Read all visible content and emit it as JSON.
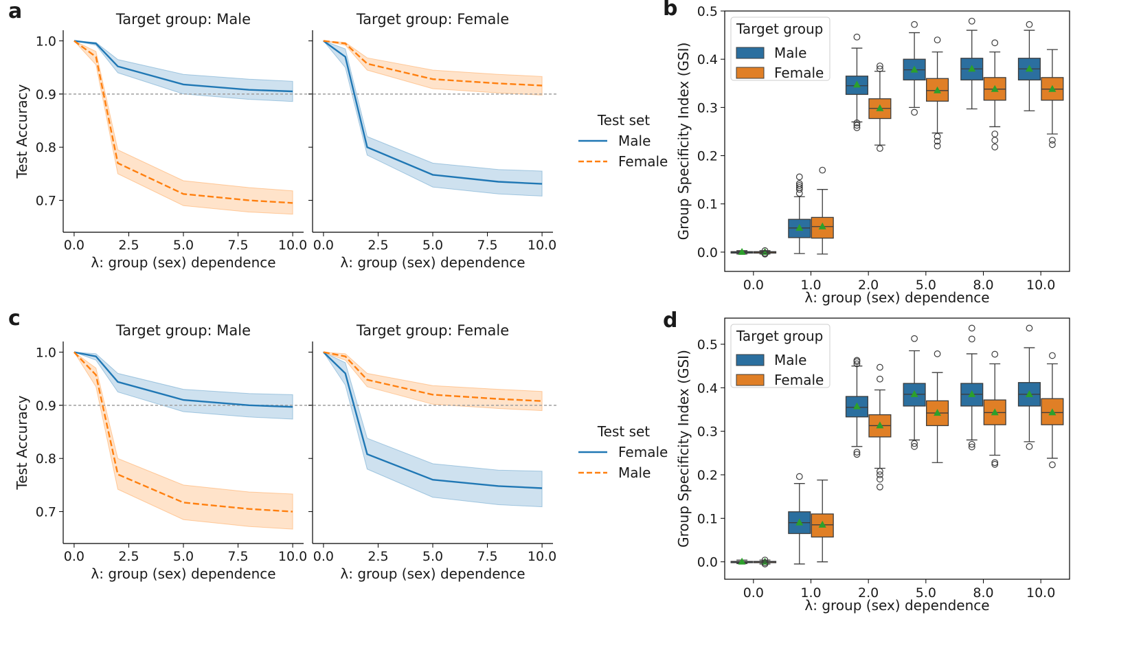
{
  "colors": {
    "blue": "#1f77b4",
    "orange": "#ff7f0e",
    "box_blue": "#2b6f9f",
    "box_orange": "#e07f26",
    "mean_marker": "#2ca02c",
    "reference_line": "#9e9e9e"
  },
  "chart_data": [
    {
      "id": "a_male",
      "panel_letter": "a",
      "type": "line",
      "title": "Target group: Male",
      "xlabel": "λ: group (sex) dependence",
      "ylabel": "Test Accuracy",
      "xlim": [
        -0.5,
        10.5
      ],
      "ylim": [
        0.64,
        1.02
      ],
      "x_ticks": [
        "0.0",
        "2.5",
        "5.0",
        "7.5",
        "10.0"
      ],
      "y_ticks": [
        "1.0",
        "0.9",
        "0.8",
        "0.7"
      ],
      "reference_y": 0.9,
      "series": [
        {
          "name": "Male",
          "style": "solid",
          "color": "blue",
          "x": [
            0,
            1,
            2,
            5,
            8,
            10
          ],
          "y": [
            1.0,
            0.995,
            0.952,
            0.918,
            0.908,
            0.905
          ],
          "lower": [
            1.0,
            0.992,
            0.94,
            0.9,
            0.89,
            0.886
          ],
          "upper": [
            1.0,
            0.997,
            0.965,
            0.937,
            0.928,
            0.924
          ]
        },
        {
          "name": "Female",
          "style": "dashed",
          "color": "orange",
          "x": [
            0,
            1,
            2,
            5,
            8,
            10
          ],
          "y": [
            1.0,
            0.97,
            0.77,
            0.712,
            0.7,
            0.695
          ],
          "lower": [
            1.0,
            0.955,
            0.75,
            0.69,
            0.678,
            0.674
          ],
          "upper": [
            1.0,
            0.98,
            0.795,
            0.737,
            0.724,
            0.718
          ]
        }
      ]
    },
    {
      "id": "a_female",
      "type": "line",
      "title": "Target group: Female",
      "xlabel": "λ: group (sex) dependence",
      "xlim": [
        -0.5,
        10.5
      ],
      "ylim": [
        0.64,
        1.02
      ],
      "x_ticks": [
        "0.0",
        "2.5",
        "5.0",
        "7.5",
        "10.0"
      ],
      "reference_y": 0.9,
      "series": [
        {
          "name": "Male",
          "style": "solid",
          "color": "blue",
          "x": [
            0,
            1,
            2,
            5,
            8,
            10
          ],
          "y": [
            1.0,
            0.97,
            0.8,
            0.748,
            0.735,
            0.731
          ],
          "lower": [
            1.0,
            0.95,
            0.785,
            0.725,
            0.712,
            0.708
          ],
          "upper": [
            1.0,
            0.985,
            0.82,
            0.77,
            0.758,
            0.755
          ]
        },
        {
          "name": "Female",
          "style": "dashed",
          "color": "orange",
          "x": [
            0,
            1,
            2,
            5,
            8,
            10
          ],
          "y": [
            1.0,
            0.995,
            0.957,
            0.928,
            0.92,
            0.916
          ],
          "lower": [
            1.0,
            0.992,
            0.945,
            0.91,
            0.902,
            0.898
          ],
          "upper": [
            1.0,
            0.997,
            0.968,
            0.945,
            0.937,
            0.933
          ]
        }
      ]
    },
    {
      "id": "b",
      "panel_letter": "b",
      "type": "box",
      "xlabel": "λ: group (sex) dependence",
      "ylabel": "Group Specificity Index (GSI)",
      "ylim": [
        -0.04,
        0.5
      ],
      "categories": [
        "0.0",
        "1.0",
        "2.0",
        "5.0",
        "8.0",
        "10.0"
      ],
      "y_ticks": [
        "0.5",
        "0.4",
        "0.3",
        "0.2",
        "0.1",
        "0.0"
      ],
      "legend": {
        "title": "Target group",
        "items": [
          "Male",
          "Female"
        ],
        "position": "upper-left"
      },
      "boxes": {
        "Male": [
          {
            "wlo": -0.004,
            "q1": -0.002,
            "med": 0.0,
            "q3": 0.001,
            "whi": 0.003,
            "mean": 0.0,
            "fliers": []
          },
          {
            "wlo": -0.003,
            "q1": 0.03,
            "med": 0.05,
            "q3": 0.068,
            "whi": 0.115,
            "mean": 0.05,
            "fliers": [
              0.122,
              0.13,
              0.134,
              0.138,
              0.142,
              0.156
            ]
          },
          {
            "wlo": 0.27,
            "q1": 0.327,
            "med": 0.345,
            "q3": 0.365,
            "whi": 0.423,
            "mean": 0.347,
            "fliers": [
              0.258,
              0.263,
              0.268,
              0.446
            ]
          },
          {
            "wlo": 0.3,
            "q1": 0.357,
            "med": 0.378,
            "q3": 0.4,
            "whi": 0.455,
            "mean": 0.378,
            "fliers": [
              0.29,
              0.472
            ]
          },
          {
            "wlo": 0.297,
            "q1": 0.357,
            "med": 0.38,
            "q3": 0.402,
            "whi": 0.46,
            "mean": 0.38,
            "fliers": [
              0.479
            ]
          },
          {
            "wlo": 0.293,
            "q1": 0.357,
            "med": 0.38,
            "q3": 0.402,
            "whi": 0.46,
            "mean": 0.38,
            "fliers": [
              0.472
            ]
          }
        ],
        "Female": [
          {
            "wlo": -0.004,
            "q1": -0.002,
            "med": 0.0,
            "q3": 0.001,
            "whi": 0.003,
            "mean": 0.0,
            "fliers": [
              -0.004,
              -0.002,
              0.003
            ]
          },
          {
            "wlo": -0.004,
            "q1": 0.029,
            "med": 0.053,
            "q3": 0.072,
            "whi": 0.13,
            "mean": 0.053,
            "fliers": [
              0.17
            ]
          },
          {
            "wlo": 0.222,
            "q1": 0.277,
            "med": 0.298,
            "q3": 0.318,
            "whi": 0.375,
            "mean": 0.298,
            "fliers": [
              0.215,
              0.38,
              0.386
            ]
          },
          {
            "wlo": 0.247,
            "q1": 0.313,
            "med": 0.335,
            "q3": 0.36,
            "whi": 0.415,
            "mean": 0.335,
            "fliers": [
              0.22,
              0.23,
              0.24,
              0.44
            ]
          },
          {
            "wlo": 0.26,
            "q1": 0.315,
            "med": 0.338,
            "q3": 0.362,
            "whi": 0.415,
            "mean": 0.338,
            "fliers": [
              0.218,
              0.232,
              0.245,
              0.434
            ]
          },
          {
            "wlo": 0.245,
            "q1": 0.315,
            "med": 0.338,
            "q3": 0.362,
            "whi": 0.42,
            "mean": 0.338,
            "fliers": [
              0.223,
              0.232
            ]
          }
        ]
      }
    },
    {
      "id": "c_male",
      "panel_letter": "c",
      "type": "line",
      "title": "Target group: Male",
      "xlabel": "λ: group (sex) dependence",
      "ylabel": "Test Accuracy",
      "xlim": [
        -0.5,
        10.5
      ],
      "ylim": [
        0.64,
        1.02
      ],
      "x_ticks": [
        "0.0",
        "2.5",
        "5.0",
        "7.5",
        "10.0"
      ],
      "y_ticks": [
        "1.0",
        "0.9",
        "0.8",
        "0.7"
      ],
      "reference_y": 0.9,
      "series": [
        {
          "name": "Female",
          "style": "solid",
          "color": "blue",
          "x": [
            0,
            1,
            2,
            5,
            8,
            10
          ],
          "y": [
            1.0,
            0.992,
            0.944,
            0.91,
            0.9,
            0.897
          ],
          "lower": [
            1.0,
            0.985,
            0.925,
            0.888,
            0.878,
            0.874
          ],
          "upper": [
            1.0,
            0.997,
            0.96,
            0.93,
            0.922,
            0.92
          ]
        },
        {
          "name": "Male",
          "style": "dashed",
          "color": "orange",
          "x": [
            0,
            1,
            2,
            5,
            8,
            10
          ],
          "y": [
            1.0,
            0.957,
            0.77,
            0.717,
            0.705,
            0.7
          ],
          "lower": [
            1.0,
            0.935,
            0.742,
            0.685,
            0.672,
            0.667
          ],
          "upper": [
            1.0,
            0.97,
            0.8,
            0.75,
            0.737,
            0.733
          ]
        }
      ]
    },
    {
      "id": "c_female",
      "type": "line",
      "title": "Target group: Female",
      "xlabel": "λ: group (sex) dependence",
      "xlim": [
        -0.5,
        10.5
      ],
      "ylim": [
        0.64,
        1.02
      ],
      "x_ticks": [
        "0.0",
        "2.5",
        "5.0",
        "7.5",
        "10.0"
      ],
      "reference_y": 0.9,
      "series": [
        {
          "name": "Female",
          "style": "solid",
          "color": "blue",
          "x": [
            0,
            1,
            2,
            5,
            8,
            10
          ],
          "y": [
            1.0,
            0.96,
            0.808,
            0.76,
            0.748,
            0.744
          ],
          "lower": [
            1.0,
            0.938,
            0.78,
            0.727,
            0.713,
            0.709
          ],
          "upper": [
            1.0,
            0.98,
            0.838,
            0.79,
            0.778,
            0.776
          ]
        },
        {
          "name": "Male",
          "style": "dashed",
          "color": "orange",
          "x": [
            0,
            1,
            2,
            5,
            8,
            10
          ],
          "y": [
            1.0,
            0.992,
            0.948,
            0.92,
            0.912,
            0.908
          ],
          "lower": [
            1.0,
            0.985,
            0.935,
            0.902,
            0.894,
            0.89
          ],
          "upper": [
            1.0,
            0.997,
            0.96,
            0.937,
            0.93,
            0.926
          ]
        }
      ]
    },
    {
      "id": "d",
      "panel_letter": "d",
      "type": "box",
      "xlabel": "λ: group (sex) dependence",
      "ylabel": "Group Specificity Index (GSI)",
      "ylim": [
        -0.04,
        0.56
      ],
      "categories": [
        "0.0",
        "1.0",
        "2.0",
        "5.0",
        "8.0",
        "10.0"
      ],
      "y_ticks": [
        "0.5",
        "0.4",
        "0.3",
        "0.2",
        "0.1",
        "0.0"
      ],
      "legend": {
        "title": "Target group",
        "items": [
          "Male",
          "Female"
        ],
        "position": "upper-left"
      },
      "boxes": {
        "Male": [
          {
            "wlo": -0.004,
            "q1": -0.002,
            "med": 0.0,
            "q3": 0.001,
            "whi": 0.004,
            "mean": 0.0,
            "fliers": []
          },
          {
            "wlo": -0.005,
            "q1": 0.065,
            "med": 0.09,
            "q3": 0.115,
            "whi": 0.18,
            "mean": 0.09,
            "fliers": [
              0.196
            ]
          },
          {
            "wlo": 0.265,
            "q1": 0.333,
            "med": 0.355,
            "q3": 0.38,
            "whi": 0.45,
            "mean": 0.357,
            "fliers": [
              0.247,
              0.252,
              0.455,
              0.46,
              0.463
            ]
          },
          {
            "wlo": 0.28,
            "q1": 0.358,
            "med": 0.385,
            "q3": 0.41,
            "whi": 0.485,
            "mean": 0.385,
            "fliers": [
              0.265,
              0.272,
              0.513
            ]
          },
          {
            "wlo": 0.28,
            "q1": 0.358,
            "med": 0.385,
            "q3": 0.41,
            "whi": 0.478,
            "mean": 0.385,
            "fliers": [
              0.264,
              0.27,
              0.512,
              0.537
            ]
          },
          {
            "wlo": 0.276,
            "q1": 0.358,
            "med": 0.385,
            "q3": 0.412,
            "whi": 0.492,
            "mean": 0.385,
            "fliers": [
              0.265,
              0.537
            ]
          }
        ],
        "Female": [
          {
            "wlo": -0.005,
            "q1": -0.002,
            "med": 0.0,
            "q3": 0.001,
            "whi": 0.004,
            "mean": 0.0,
            "fliers": [
              -0.005,
              -0.002,
              0.004
            ]
          },
          {
            "wlo": 0.0,
            "q1": 0.057,
            "med": 0.085,
            "q3": 0.11,
            "whi": 0.188,
            "mean": 0.085,
            "fliers": []
          },
          {
            "wlo": 0.215,
            "q1": 0.287,
            "med": 0.313,
            "q3": 0.338,
            "whi": 0.395,
            "mean": 0.313,
            "fliers": [
              0.172,
              0.19,
              0.2,
              0.208,
              0.42,
              0.447
            ]
          },
          {
            "wlo": 0.228,
            "q1": 0.313,
            "med": 0.342,
            "q3": 0.37,
            "whi": 0.435,
            "mean": 0.342,
            "fliers": [
              0.478
            ]
          },
          {
            "wlo": 0.245,
            "q1": 0.315,
            "med": 0.343,
            "q3": 0.372,
            "whi": 0.455,
            "mean": 0.343,
            "fliers": [
              0.224,
              0.228,
              0.477
            ]
          },
          {
            "wlo": 0.238,
            "q1": 0.315,
            "med": 0.343,
            "q3": 0.375,
            "whi": 0.455,
            "mean": 0.343,
            "fliers": [
              0.223,
              0.474
            ]
          }
        ]
      }
    }
  ],
  "legends": {
    "top": {
      "title": "Test set",
      "items": [
        {
          "label": "Male",
          "style": "solid",
          "color": "blue"
        },
        {
          "label": "Female",
          "style": "dashed",
          "color": "orange"
        }
      ]
    },
    "bottom": {
      "title": "Test set",
      "items": [
        {
          "label": "Female",
          "style": "solid",
          "color": "blue"
        },
        {
          "label": "Male",
          "style": "dashed",
          "color": "orange"
        }
      ]
    }
  }
}
